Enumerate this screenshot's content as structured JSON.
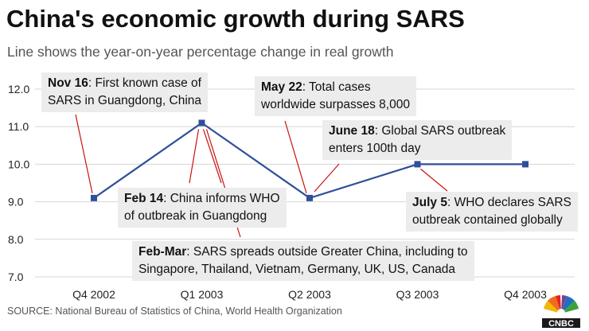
{
  "title": "China's economic growth during SARS",
  "subtitle": "Line shows the year-on-year percentage change in real growth",
  "source": "SOURCE: National Bureau of Statistics of China, World Health Organization",
  "logo_text": "CNBC",
  "colors": {
    "line": "#2f4f9a",
    "annotation_line": "#cc1111",
    "box": "#ececec"
  },
  "annotations": [
    {
      "id": "nov16",
      "date": "Nov 16",
      "text": ": First known case of",
      "text2": "SARS in Guangdong, China"
    },
    {
      "id": "feb14",
      "date": "Feb 14",
      "text": ": China informs WHO",
      "text2": "of outbreak in Guangdong"
    },
    {
      "id": "febmar",
      "date": "Feb-Mar",
      "text": ": SARS spreads outside Greater China, including to",
      "text2": "Singapore, Thailand, Vietnam, Germany, UK, US, Canada"
    },
    {
      "id": "may22",
      "date": "May 22",
      "text": ": Total cases",
      "text2": "worldwide surpasses 8,000"
    },
    {
      "id": "june18",
      "date": "June 18",
      "text": ": Global SARS outbreak",
      "text2": "enters 100th day"
    },
    {
      "id": "july5",
      "date": "July 5",
      "text": ": WHO declares SARS",
      "text2": "outbreak contained globally"
    }
  ],
  "chart_data": {
    "type": "line",
    "title": "China's economic growth during SARS",
    "subtitle": "Line shows the year-on-year percentage change in real growth",
    "categories": [
      "Q4 2002",
      "Q1 2003",
      "Q2 2003",
      "Q3 2003",
      "Q4 2003"
    ],
    "series": [
      {
        "values": [
          9.1,
          11.1,
          9.1,
          10.0,
          10.0
        ]
      }
    ],
    "yticks": [
      7.0,
      8.0,
      9.0,
      10.0,
      11.0,
      12.0
    ],
    "ytick_labels": [
      "7.0",
      "8.0",
      "9.0",
      "10.0",
      "11.0",
      "12.0"
    ],
    "ylim": [
      7.0,
      12.0
    ],
    "grid": "horizontal",
    "legend": "none"
  }
}
